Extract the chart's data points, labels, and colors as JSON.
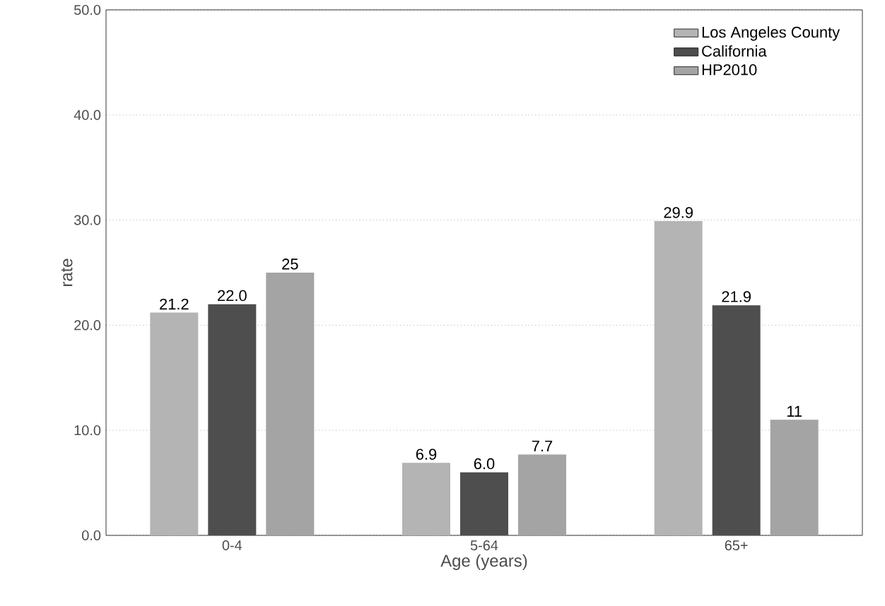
{
  "chart_data": {
    "type": "bar",
    "xlabel": "Age (years)",
    "ylabel": "rate",
    "categories": [
      "0-4",
      "5-64",
      "65+"
    ],
    "series": [
      {
        "name": "Los Angeles County",
        "color": "#b4b4b4",
        "values": [
          21.2,
          6.9,
          29.9
        ],
        "value_labels": [
          "21.2",
          "6.9",
          "29.9"
        ]
      },
      {
        "name": "California",
        "color": "#4e4e4e",
        "values": [
          22.0,
          6.0,
          21.9
        ],
        "value_labels": [
          "22.0",
          "6.0",
          "21.9"
        ]
      },
      {
        "name": "HP2010",
        "color": "#a4a4a4",
        "values": [
          25,
          7.7,
          11
        ],
        "value_labels": [
          "25",
          "7.7",
          "11"
        ]
      }
    ],
    "ylim": [
      0,
      50
    ],
    "yticks": [
      {
        "value": 0,
        "label": "0.0"
      },
      {
        "value": 10,
        "label": "10.0"
      },
      {
        "value": 20,
        "label": "20.0"
      },
      {
        "value": 30,
        "label": "30.0"
      },
      {
        "value": 40,
        "label": "40.0"
      },
      {
        "value": 50,
        "label": "50.0"
      }
    ],
    "grid": "y",
    "legend": "top right"
  }
}
